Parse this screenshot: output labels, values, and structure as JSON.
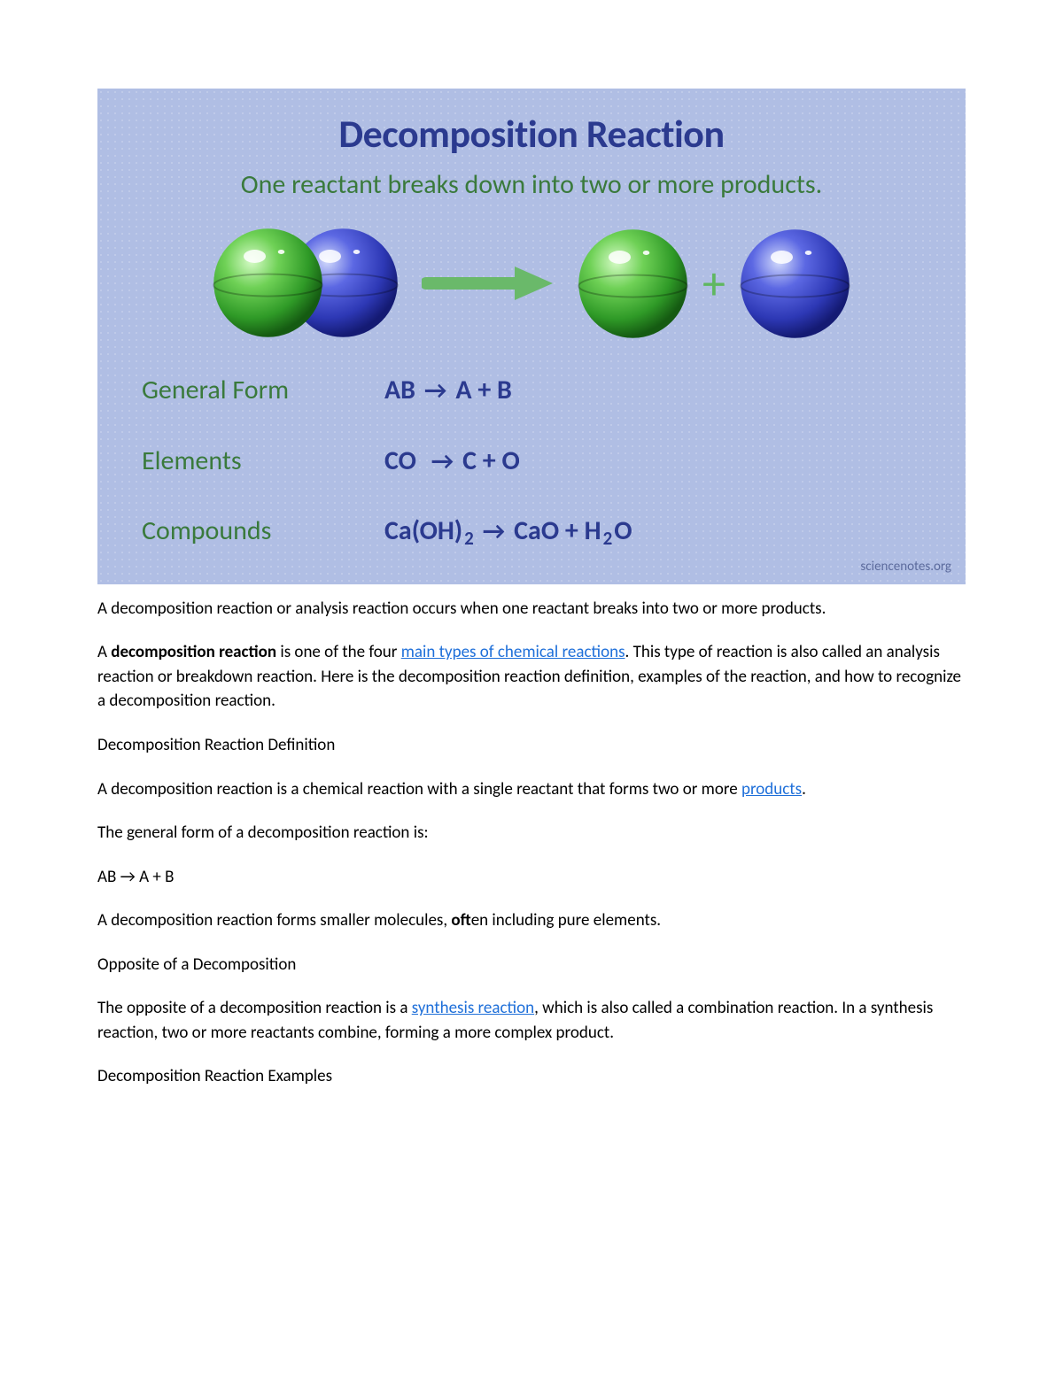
{
  "colors": {
    "info_bg": "#b0bee4",
    "title_color": "#2b3a8f",
    "subtitle_color": "#3a7a3c",
    "green_label": "#3a7a3c",
    "formula_color": "#2b3a8f",
    "plus_color": "#5fb760",
    "arrow_color": "#6ab96a",
    "link_color": "#1e6fd9",
    "attribution_color": "#5c6b9d",
    "sphere_green_light": "#c8f5b8",
    "sphere_green_mid": "#56c245",
    "sphere_green_dark": "#1e6b1a",
    "sphere_blue_light": "#c5d0fb",
    "sphere_blue_mid": "#4a56d8",
    "sphere_blue_dark": "#1b2283"
  },
  "infographic": {
    "title": "Decomposition Reaction",
    "subtitle": "One reactant breaks down into two or more products.",
    "rows": [
      {
        "label": "General Form",
        "formula_html": "AB <span class='farrow'>→</span> A + B"
      },
      {
        "label": "Elements",
        "formula_html": "CO&nbsp; <span class='farrow'>→</span> C + O"
      },
      {
        "label": "Compounds",
        "formula_html": "Ca(OH)<sub>2</sub> <span class='farrow'>→</span> CaO + H<sub>2</sub>O"
      }
    ],
    "attribution": "sciencenotes.org"
  },
  "body": {
    "p1": "A decomposition reaction or analysis reaction occurs when one reactant breaks into two or more products.",
    "p2_pre": "A ",
    "p2_bold": "decomposition reaction",
    "p2_mid": " is one of the four ",
    "p2_link1": "main types of chemical reactions",
    "p2_post": ". This type of reaction is also called an analysis reaction or breakdown reaction. Here is the decomposition reaction definition, examples of the reaction, and how to recognize a decomposition reaction.",
    "h1": "Decomposition Reaction Definition",
    "p3_pre": "A decomposition reaction is a chemical reaction with a single reactant that forms two or more ",
    "p3_link": "products",
    "p3_post": ".",
    "p4": "The general form of a decomposition reaction is:",
    "p5": "AB → A + B",
    "p6_pre": "A decomposition reaction forms smaller molecules, ",
    "p6_bold": "oft",
    "p6_post": "en including pure elements.",
    "h2": "Opposite of a Decomposition",
    "p7_pre": "The opposite of a decomposition reaction is a ",
    "p7_link": "synthesis reaction",
    "p7_post": ", which is also called a combination reaction. In a synthesis reaction, two or more reactants combine, forming a more complex product.",
    "h3": "Decomposition Reaction Examples"
  }
}
